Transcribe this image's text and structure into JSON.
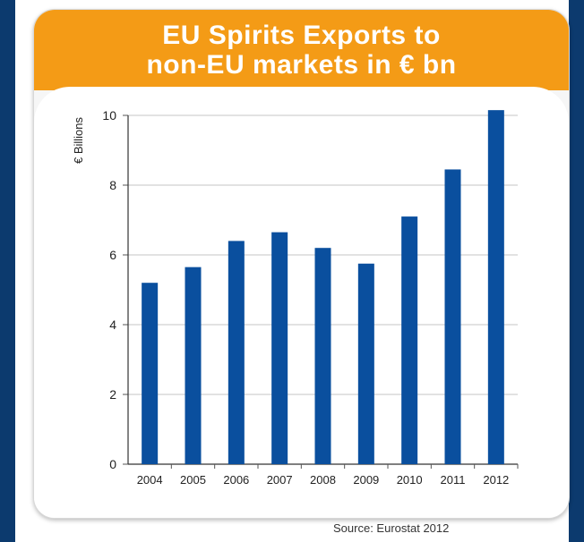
{
  "chart_data": {
    "type": "bar",
    "title": "EU Spirits Exports to non-EU markets in € bn",
    "title_lines": [
      "EU Spirits Exports to",
      "non-EU markets in € bn"
    ],
    "xlabel": "",
    "ylabel": "€ Billions",
    "categories": [
      "2004",
      "2005",
      "2006",
      "2007",
      "2008",
      "2009",
      "2010",
      "2011",
      "2012"
    ],
    "values": [
      5.2,
      5.65,
      6.4,
      6.65,
      6.2,
      5.75,
      7.1,
      8.45,
      10.15
    ],
    "ylim": [
      0,
      10
    ],
    "yticks": [
      "0",
      "2",
      "4",
      "6",
      "8",
      "10"
    ],
    "grid": true,
    "legend": "none",
    "bar_color": "#0a4f9e",
    "header_color": "#f49b16"
  },
  "source": "Source: Eurostat 2012"
}
